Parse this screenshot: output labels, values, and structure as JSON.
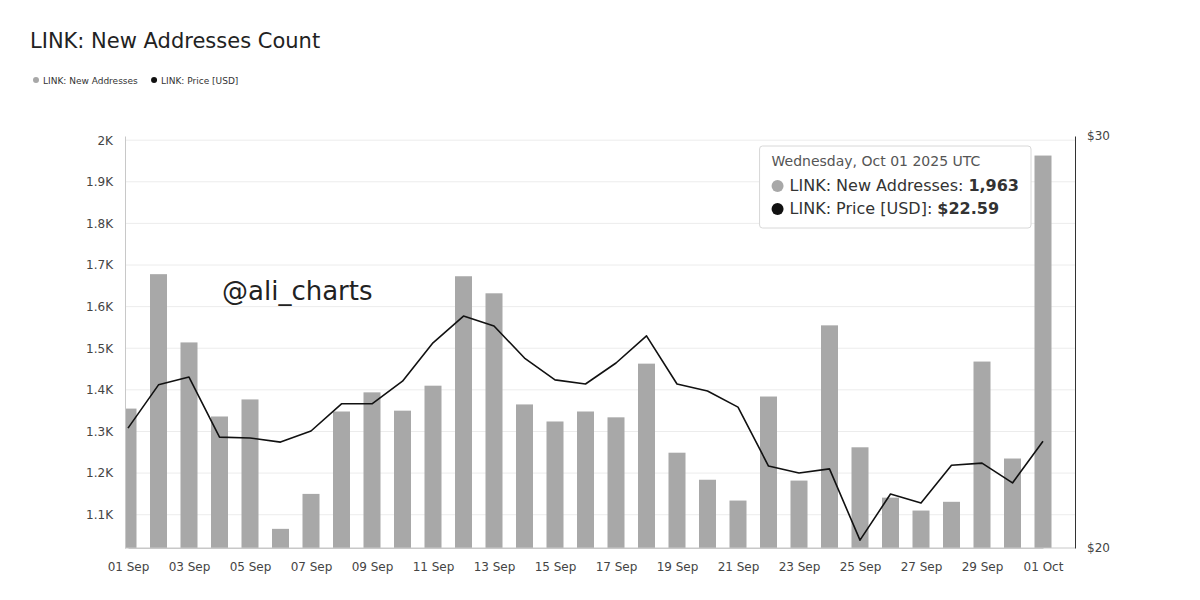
{
  "chart_data": {
    "type": "bar",
    "title": "LINK: New Addresses Count",
    "categories": [
      "01 Sep",
      null,
      "03 Sep",
      null,
      "05 Sep",
      null,
      "07 Sep",
      null,
      "09 Sep",
      null,
      "11 Sep",
      null,
      "13 Sep",
      null,
      "15 Sep",
      null,
      "17 Sep",
      null,
      "19 Sep",
      null,
      "21 Sep",
      null,
      "23 Sep",
      null,
      "25 Sep",
      null,
      "27 Sep",
      null,
      "29 Sep",
      null,
      "01 Oct"
    ],
    "series": [
      {
        "name": "LINK: New Addresses",
        "type": "bar",
        "color": "#a8a8a8",
        "values": [
          1355,
          1678,
          1514,
          1336,
          1377,
          1066,
          1150,
          1348,
          1394,
          1350,
          1410,
          1673,
          1632,
          1365,
          1324,
          1348,
          1334,
          1463,
          1249,
          1184,
          1134,
          1384,
          1182,
          1555,
          1262,
          1141,
          1110,
          1131,
          1468,
          1235,
          1963
        ]
      },
      {
        "name": "LINK: Price [USD]",
        "type": "line",
        "color": "#111111",
        "axis": "y2",
        "values": [
          22.91,
          23.96,
          24.15,
          22.69,
          22.67,
          22.57,
          22.84,
          23.5,
          23.5,
          24.05,
          24.98,
          25.63,
          25.39,
          24.61,
          24.08,
          23.98,
          24.49,
          25.15,
          23.98,
          23.81,
          23.42,
          21.99,
          21.82,
          21.92,
          20.19,
          21.31,
          21.09,
          22.01,
          22.06,
          21.58,
          22.59
        ]
      }
    ],
    "ylim": [
      1020,
      2010
    ],
    "yticks": [
      {
        "value": 1100,
        "label": "1.1K"
      },
      {
        "value": 1200,
        "label": "1.2K"
      },
      {
        "value": 1300,
        "label": "1.3K"
      },
      {
        "value": 1400,
        "label": "1.4K"
      },
      {
        "value": 1500,
        "label": "1.5K"
      },
      {
        "value": 1600,
        "label": "1.6K"
      },
      {
        "value": 1700,
        "label": "1.7K"
      },
      {
        "value": 1800,
        "label": "1.8K"
      },
      {
        "value": 1900,
        "label": "1.9K"
      },
      {
        "value": 2000,
        "label": "2K"
      }
    ],
    "y2lim": [
      20,
      30
    ],
    "y2ticks": [
      {
        "value": 20,
        "label": "$20"
      },
      {
        "value": 30,
        "label": "$30"
      }
    ],
    "grid": true,
    "legend": "top-left",
    "annotation": {
      "title": "Wednesday, Oct 01 2025 UTC",
      "rows": [
        {
          "label": "LINK: New Addresses:",
          "value": "1,963"
        },
        {
          "label": "LINK: Price [USD]:",
          "value": "$22.59"
        }
      ]
    },
    "credit": "@ali_charts"
  }
}
